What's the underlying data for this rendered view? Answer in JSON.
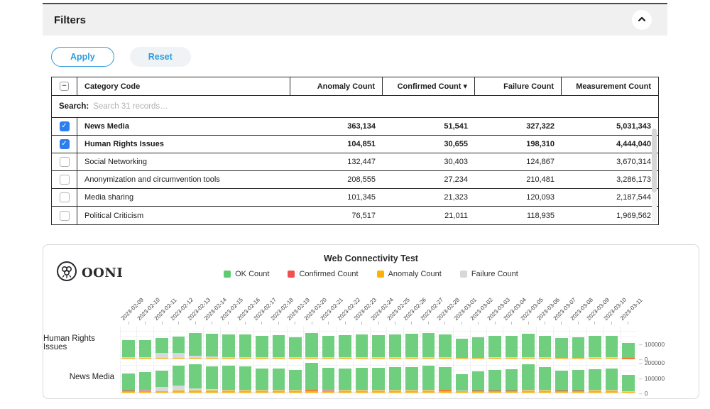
{
  "filters_panel": {
    "title": "Filters",
    "collapse_icon": "chevron-up",
    "apply_label": "Apply",
    "reset_label": "Reset",
    "table": {
      "columns": [
        "Category Code",
        "Anomaly Count",
        "Confirmed Count ▾",
        "Failure Count",
        "Measurement Count"
      ],
      "search_label": "Search:",
      "search_placeholder": "Search 31 records…",
      "rows": [
        {
          "checked": true,
          "category": "News Media",
          "anomaly": "363,134",
          "confirmed": "51,541",
          "failure": "327,322",
          "measurement": "5,031,343"
        },
        {
          "checked": true,
          "category": "Human Rights Issues",
          "anomaly": "104,851",
          "confirmed": "30,655",
          "failure": "198,310",
          "measurement": "4,444,040"
        },
        {
          "checked": false,
          "category": "Social Networking",
          "anomaly": "132,447",
          "confirmed": "30,403",
          "failure": "124,867",
          "measurement": "3,670,314"
        },
        {
          "checked": false,
          "category": "Anonymization and circumvention tools",
          "anomaly": "208,555",
          "confirmed": "27,234",
          "failure": "210,481",
          "measurement": "3,286,173"
        },
        {
          "checked": false,
          "category": "Media sharing",
          "anomaly": "101,345",
          "confirmed": "21,323",
          "failure": "120,093",
          "measurement": "2,187,544"
        },
        {
          "checked": false,
          "category": "Political Criticism",
          "anomaly": "76,517",
          "confirmed": "21,011",
          "failure": "118,935",
          "measurement": "1,969,562"
        }
      ]
    }
  },
  "chart_panel": {
    "logo_text": "OONI",
    "title": "Web Connectivity Test",
    "legend": [
      {
        "label": "OK Count",
        "color": "#5ecb71"
      },
      {
        "label": "Confirmed Count",
        "color": "#f05050"
      },
      {
        "label": "Anomaly Count",
        "color": "#ffb300"
      },
      {
        "label": "Failure Count",
        "color": "#d6d8de"
      }
    ]
  },
  "chart_data": {
    "type": "bar",
    "stacked": true,
    "title": "Web Connectivity Test",
    "legend_position": "top",
    "x": [
      "2023-02-09",
      "2023-02-10",
      "2023-02-11",
      "2023-02-12",
      "2023-02-13",
      "2023-02-14",
      "2023-02-15",
      "2023-02-16",
      "2023-02-17",
      "2023-02-18",
      "2023-02-19",
      "2023-02-20",
      "2023-02-21",
      "2023-02-22",
      "2023-02-23",
      "2023-02-24",
      "2023-02-25",
      "2023-02-26",
      "2023-02-27",
      "2023-02-28",
      "2023-03-01",
      "2023-03-02",
      "2023-03-03",
      "2023-03-04",
      "2023-03-05",
      "2023-03-06",
      "2023-03-07",
      "2023-03-08",
      "2023-03-09",
      "2023-03-10",
      "2023-03-11"
    ],
    "rows": [
      {
        "label": "Human Rights Issues",
        "ylim": [
          0,
          215000
        ],
        "yticks": [
          100000,
          0
        ],
        "series": [
          {
            "name": "Anomaly Count",
            "color": "#ffb300",
            "values": [
              3800,
              4000,
              4200,
              4000,
              4500,
              4200,
              4000,
              4000,
              3800,
              4000,
              3800,
              4500,
              4000,
              4000,
              4000,
              4000,
              4200,
              4000,
              4000,
              4500,
              3200,
              3500,
              3600,
              3600,
              4200,
              3800,
              3400,
              3500,
              3600,
              3600,
              2500
            ]
          },
          {
            "name": "Confirmed Count",
            "color": "#f05050",
            "values": [
              1800,
              1900,
              2000,
              1900,
              2100,
              2000,
              1900,
              1900,
              1800,
              1900,
              1800,
              2100,
              1900,
              1900,
              1900,
              1900,
              2000,
              1900,
              1900,
              2100,
              1500,
              1600,
              1700,
              1700,
              2000,
              1800,
              1600,
              1600,
              1700,
              1700,
              1200
            ]
          },
          {
            "name": "Failure Count",
            "color": "#d6d8de",
            "values": [
              2000,
              2500,
              30000,
              32000,
              12000,
              6000,
              2500,
              2500,
              2500,
              2500,
              2500,
              3000,
              2500,
              2500,
              2500,
              2500,
              2500,
              2500,
              2500,
              3000,
              1800,
              2000,
              2000,
              2000,
              2500,
              2000,
              2000,
              2000,
              2000,
              2000,
              1500
            ]
          },
          {
            "name": "OK Count",
            "color": "#6fcf7f",
            "values": [
              112000,
              114000,
              99000,
              107000,
              148000,
              150000,
              152000,
              150000,
              144000,
              147000,
              132000,
              160000,
              140000,
              146000,
              150000,
              148000,
              152000,
              155000,
              159000,
              152000,
              126000,
              136000,
              140000,
              140000,
              155000,
              144000,
              131000,
              135000,
              142000,
              144000,
              99000
            ]
          }
        ]
      },
      {
        "label": "News Media",
        "ylim": [
          0,
          215000
        ],
        "yticks": [
          200000,
          100000,
          0
        ],
        "series": [
          {
            "name": "Anomaly Count",
            "color": "#ffb300",
            "values": [
              10000,
              11000,
              9000,
              12000,
              13000,
              12000,
              12000,
              12000,
              12000,
              13000,
              12000,
              15000,
              11000,
              12000,
              12000,
              12000,
              13000,
              12000,
              12000,
              14000,
              9000,
              10000,
              11000,
              11000,
              13000,
              12000,
              11000,
              11000,
              12000,
              12000,
              5000
            ]
          },
          {
            "name": "Confirmed Count",
            "color": "#f05050",
            "values": [
              2500,
              2600,
              2400,
              2700,
              2900,
              2700,
              2700,
              2700,
              2600,
              2700,
              2600,
              3000,
              2600,
              2600,
              2600,
              2600,
              2700,
              2700,
              2700,
              2900,
              2100,
              2300,
              2400,
              2400,
              2800,
              2600,
              2300,
              2300,
              2500,
              2500,
              1800
            ]
          },
          {
            "name": "Failure Count",
            "color": "#d6d8de",
            "values": [
              3000,
              3500,
              26000,
              33000,
              14000,
              7000,
              3000,
              3000,
              3000,
              3000,
              3000,
              3500,
              3000,
              3000,
              3000,
              3000,
              3000,
              3000,
              3000,
              3500,
              2500,
              2500,
              2500,
              2500,
              3000,
              2500,
              2500,
              2500,
              2500,
              2500,
              2000
            ]
          },
          {
            "name": "OK Count",
            "color": "#6fcf7f",
            "values": [
              112000,
              120000,
              110000,
              130000,
              155000,
              150000,
              158000,
              156000,
              142000,
              140000,
              130000,
              175000,
              145000,
              143000,
              146000,
              144000,
              149000,
              153000,
              159000,
              150000,
              108000,
              126000,
              134000,
              137000,
              168000,
              149000,
              130000,
              132000,
              139000,
              141000,
              110000
            ]
          }
        ]
      }
    ]
  }
}
